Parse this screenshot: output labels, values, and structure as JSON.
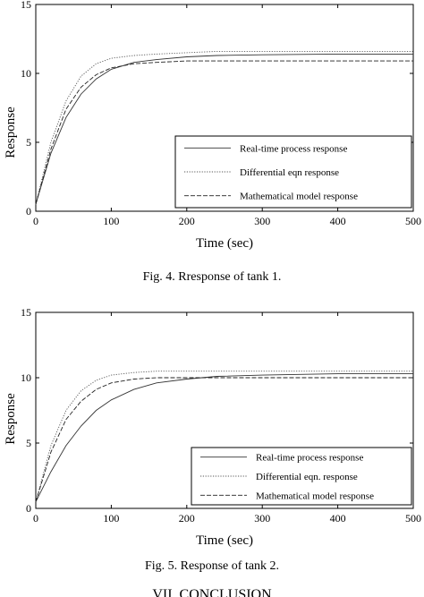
{
  "chart_data": [
    {
      "type": "line",
      "xlabel": "Time (sec)",
      "ylabel": "Response",
      "xlim": [
        0,
        500
      ],
      "ylim": [
        0,
        15
      ],
      "xticks": [
        "0",
        "100",
        "200",
        "300",
        "400",
        "500"
      ],
      "yticks": [
        "0",
        "5",
        "10",
        "15"
      ],
      "grid": false,
      "legend_position": "bottom-right",
      "series": [
        {
          "name": "Real-time process response",
          "x": [
            0,
            20,
            40,
            60,
            80,
            100,
            130,
            160,
            200,
            240,
            300,
            400,
            500
          ],
          "y": [
            0.5,
            4.2,
            6.8,
            8.5,
            9.6,
            10.3,
            10.8,
            11.0,
            11.2,
            11.3,
            11.35,
            11.4,
            11.4
          ]
        },
        {
          "name": "Differential eqn response",
          "x": [
            0,
            20,
            40,
            60,
            80,
            100,
            130,
            160,
            200,
            240,
            300,
            400,
            500
          ],
          "y": [
            0.5,
            5.0,
            8.0,
            9.8,
            10.7,
            11.1,
            11.3,
            11.4,
            11.5,
            11.6,
            11.6,
            11.6,
            11.6
          ]
        },
        {
          "name": "Mathematical model response",
          "x": [
            0,
            20,
            40,
            60,
            80,
            100,
            130,
            160,
            200,
            240,
            300,
            400,
            500
          ],
          "y": [
            0.5,
            4.5,
            7.4,
            9.0,
            9.9,
            10.4,
            10.7,
            10.8,
            10.9,
            10.9,
            10.9,
            10.9,
            10.9
          ]
        }
      ]
    },
    {
      "type": "line",
      "xlabel": "Time (sec)",
      "ylabel": "Response",
      "xlim": [
        0,
        500
      ],
      "ylim": [
        0,
        15
      ],
      "xticks": [
        "0",
        "100",
        "200",
        "300",
        "400",
        "500"
      ],
      "yticks": [
        "0",
        "5",
        "10",
        "15"
      ],
      "grid": false,
      "legend_position": "bottom-right",
      "series": [
        {
          "name": "Real-time process response",
          "x": [
            0,
            20,
            40,
            60,
            80,
            100,
            130,
            160,
            200,
            240,
            300,
            400,
            500
          ],
          "y": [
            0.5,
            2.8,
            4.8,
            6.3,
            7.5,
            8.3,
            9.1,
            9.6,
            9.9,
            10.1,
            10.2,
            10.3,
            10.3
          ]
        },
        {
          "name": "Differential eqn. response",
          "x": [
            0,
            20,
            40,
            60,
            80,
            100,
            130,
            160,
            200,
            240,
            300,
            400,
            500
          ],
          "y": [
            0.5,
            4.8,
            7.5,
            9.0,
            9.8,
            10.2,
            10.4,
            10.5,
            10.5,
            10.5,
            10.5,
            10.5,
            10.5
          ]
        },
        {
          "name": "Mathematical model response",
          "x": [
            0,
            20,
            40,
            60,
            80,
            100,
            130,
            160,
            200,
            240,
            300,
            400,
            500
          ],
          "y": [
            0.5,
            4.3,
            6.8,
            8.2,
            9.1,
            9.6,
            9.9,
            10.0,
            10.0,
            10.0,
            10.0,
            10.0,
            10.0
          ]
        }
      ]
    }
  ],
  "captions": {
    "fig4": "Fig. 4.   Rresponse of tank 1.",
    "fig5": "Fig. 5.   Response of tank 2.",
    "next_heading": "VII. CONCLUSION"
  }
}
